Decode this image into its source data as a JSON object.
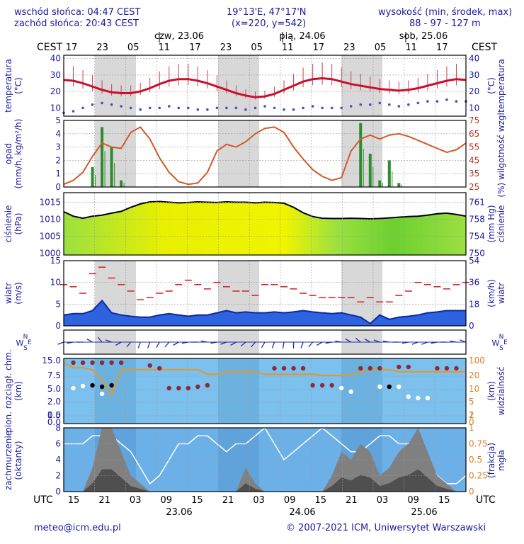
{
  "header": {
    "sunrise": "wschód słońca: 04:47 CEST",
    "sunset": "zachód słońca: 20:43 CEST",
    "coords": "19°13'E, 47°17'N",
    "grid": "(x=220, y=542)",
    "elev_label": "wysokość (min, środek, max)",
    "elev_values": "88 - 97 - 127 m"
  },
  "time_axis": {
    "top_zone": "CEST",
    "bottom_zone": "UTC",
    "days": [
      "czw, 23.06",
      "pią, 24.06",
      "sob, 25.06"
    ],
    "cest_ticks": [
      "17",
      "23",
      "05",
      "11",
      "17",
      "23",
      "05",
      "11",
      "17",
      "23",
      "05",
      "11",
      "17"
    ],
    "utc_ticks": [
      "15",
      "21",
      "03",
      "09",
      "15",
      "21",
      "03",
      "09",
      "15",
      "21",
      "03",
      "09",
      "15"
    ],
    "bottom_dates": [
      "23.06",
      "24.06",
      "25.06"
    ]
  },
  "footer": {
    "left": "meteo@icm.edu.pl",
    "right": "© 2007-2021 ICM, Uniwersytet Warszawski"
  },
  "chart_data": [
    {
      "type": "line",
      "panel": "temperature",
      "ylabel_left": "temperatura (°C)",
      "ylabel_right": "temperatura (°C)",
      "yticks_left": [
        "40",
        "30",
        "20",
        "10"
      ],
      "yticks_right": [
        "40",
        "30",
        "20",
        "10"
      ],
      "ylim": [
        5,
        42
      ],
      "series": [
        {
          "color": "#c8102e",
          "values": [
            27,
            26.5,
            25,
            23,
            21,
            19.5,
            19,
            19,
            20,
            22,
            24.5,
            26.5,
            27.5,
            27.5,
            26.5,
            25,
            23,
            21,
            19,
            17.5,
            16.5,
            17,
            18.5,
            21,
            23.5,
            26,
            27.5,
            28,
            27.5,
            26,
            24.5,
            23.5,
            22.5,
            21.5,
            21,
            20.5,
            21,
            22,
            23.5,
            25,
            26.5,
            27.5,
            27
          ]
        },
        {
          "color": "#4c4ccc",
          "values": [
            7,
            8,
            10,
            12,
            13,
            12,
            11,
            10,
            9,
            10,
            10,
            11,
            10,
            10,
            9,
            9,
            10,
            10,
            10,
            9,
            10,
            11,
            10,
            9,
            9,
            10,
            11,
            10,
            10,
            10,
            11,
            12,
            12,
            13,
            12,
            11,
            12,
            13,
            14,
            14,
            15,
            14,
            14
          ]
        }
      ]
    },
    {
      "type": "bar",
      "panel": "precipitation_humidity",
      "ylabel_left": "opad (mm/h, kg/m²/h)",
      "ylabel_right": "(%) wilgotność wzgl.",
      "yticks_left": [
        "5",
        "4",
        "3",
        "2",
        "1",
        "0"
      ],
      "yticks_right": [
        "75",
        "65",
        "55",
        "45",
        "35",
        "25"
      ],
      "ylim": [
        0,
        5
      ],
      "ylim_right": [
        25,
        75
      ],
      "series": [
        {
          "color": "#d15a2a",
          "values": [
            27,
            30,
            36,
            48,
            58,
            55,
            54,
            66,
            70,
            61,
            47,
            36,
            29,
            27,
            28,
            36,
            52,
            57,
            55,
            59,
            65,
            69,
            70,
            66,
            55,
            46,
            38,
            33,
            30,
            32,
            52,
            61,
            64,
            61,
            64,
            65,
            63,
            60,
            57,
            54,
            51,
            53,
            58
          ]
        },
        {
          "color": "#2e8b2e",
          "values": [
            0,
            0,
            0,
            1.5,
            4.5,
            3.0,
            0.5,
            0,
            0,
            0,
            0,
            0,
            0,
            0,
            0,
            0,
            0,
            0,
            0,
            0,
            0,
            0,
            0,
            0,
            0,
            0,
            0,
            0,
            0,
            0,
            0,
            4.8,
            2.5,
            0.5,
            2.0,
            0.3,
            0,
            0,
            0,
            0,
            0,
            0,
            0
          ]
        }
      ]
    },
    {
      "type": "area",
      "panel": "pressure",
      "ylabel_left": "ciśnienie (hPa)",
      "ylabel_right": "(mm Hg) ciśnienie",
      "yticks_left": [
        "1015",
        "1010",
        "1005",
        "1000"
      ],
      "yticks_right": [
        "761",
        "758",
        "754",
        "750"
      ],
      "ylim": [
        999.5,
        1017.8
      ],
      "series": [
        {
          "color": "#000000",
          "values": [
            1012.2,
            1010.9,
            1010.3,
            1010.9,
            1011.2,
            1011.8,
            1012.3,
            1013.5,
            1014.5,
            1015.1,
            1015.2,
            1015.0,
            1014.8,
            1014.9,
            1015.1,
            1015.0,
            1014.9,
            1015.1,
            1015.0,
            1015.0,
            1014.8,
            1015.0,
            1014.9,
            1014.7,
            1013.5,
            1011.9,
            1010.8,
            1010.3,
            1010.2,
            1010.2,
            1010.3,
            1010.2,
            1010.1,
            1010.2,
            1010.4,
            1010.6,
            1010.8,
            1010.9,
            1011.2,
            1011.6,
            1011.8,
            1011.4,
            1010.9
          ]
        }
      ]
    },
    {
      "type": "line",
      "panel": "wind",
      "ylabel_left": "wiatr (m/s)",
      "ylabel_right": "(km/h) wiatr",
      "yticks_left": [
        "15",
        "10",
        "5",
        "0"
      ],
      "yticks_right": [
        "54",
        "36",
        "18",
        "0"
      ],
      "ylim": [
        0,
        15
      ],
      "series": [
        {
          "color": "#1f3fc8",
          "values": [
            2.5,
            2.8,
            2.8,
            3.5,
            5.8,
            3.0,
            2.5,
            2.2,
            2.0,
            2.0,
            2.5,
            2.8,
            2.5,
            2.2,
            2.5,
            2.5,
            3.0,
            3.5,
            3.0,
            3.2,
            3.0,
            3.0,
            3.2,
            3.0,
            3.2,
            3.5,
            3.2,
            3.0,
            2.8,
            3.0,
            2.5,
            2.0,
            0.5,
            2.5,
            1.5,
            2.0,
            2.2,
            2.5,
            3.0,
            3.2,
            3.5,
            3.5,
            3.5
          ]
        },
        {
          "color": "#d22020",
          "values": [
            9.5,
            9.0,
            7.5,
            12,
            13.5,
            11,
            9.5,
            8.0,
            6.0,
            6.5,
            7.5,
            8.0,
            9.5,
            10.5,
            9.5,
            8.5,
            10,
            9.0,
            8.0,
            8.0,
            7.0,
            9.5,
            9.5,
            9.0,
            8.5,
            7.5,
            7.0,
            6.5,
            6.5,
            6.5,
            6.5,
            5.5,
            6.5,
            5.5,
            5.5,
            7.0,
            8.0,
            10,
            9.5,
            9.0,
            8.5,
            9.5,
            10
          ]
        }
      ]
    },
    {
      "type": "scatter",
      "panel": "wind_direction",
      "ylabel_left": "W N E S",
      "ylabel_right": "W N E S",
      "series": [
        {
          "color": "#1f2fa8",
          "values": [
            250,
            260,
            270,
            300,
            320,
            290,
            240,
            220,
            200,
            200,
            210,
            220,
            240,
            260,
            270,
            280,
            260,
            250,
            240,
            230,
            220,
            210,
            200,
            190,
            180,
            200,
            220,
            240,
            260,
            280,
            300,
            310,
            300,
            290,
            280,
            270,
            260,
            250,
            250,
            260,
            270,
            280,
            290
          ]
        }
      ]
    },
    {
      "type": "line",
      "panel": "clouds_visibility",
      "ylabel_left": "pion. rozciągł. chm. (km)",
      "ylabel_right": "(km) widzialność",
      "yticks_left": [
        "15.0",
        "7.5",
        "5.0",
        "2.0",
        "1.0",
        "0.5",
        "0.0"
      ],
      "yticks_right": [
        "100",
        "20",
        "10",
        "5",
        "2",
        "1",
        "0"
      ],
      "series": [
        {
          "color": "#e3972a",
          "values": [
            14,
            11,
            11,
            10,
            6,
            2.5,
            10,
            10,
            10,
            10,
            10,
            10,
            10,
            10,
            10,
            8,
            8,
            9,
            9,
            9,
            9,
            8,
            8,
            8,
            8,
            8,
            8,
            7.5,
            7.5,
            7.5,
            8,
            9,
            10,
            10,
            10,
            9,
            9,
            9,
            9,
            9,
            9,
            9,
            9
          ]
        }
      ]
    },
    {
      "type": "area",
      "panel": "cloud_cover_fog",
      "ylabel_left": "zachmurzenie (oktanty)",
      "ylabel_right": "(frakcja) mgła",
      "yticks_left": [
        "8",
        "6",
        "4",
        "2",
        "0"
      ],
      "yticks_right": [
        "1",
        "0.75",
        "0.5",
        "0.25",
        "0"
      ],
      "ylim": [
        0,
        8
      ],
      "series": [
        {
          "color": "#808080",
          "values": [
            0,
            0,
            0,
            3,
            8,
            8,
            5,
            2,
            1,
            0,
            0,
            0,
            0,
            0,
            0,
            0,
            0,
            0,
            0,
            3,
            1,
            0,
            0,
            0,
            0,
            0,
            0,
            0,
            2,
            5,
            4,
            6,
            5,
            2,
            3,
            5,
            6,
            8,
            5,
            2,
            1,
            0,
            0
          ]
        },
        {
          "color": "#ffffff",
          "values": [
            6,
            6,
            6,
            7,
            7,
            7,
            6,
            5,
            3,
            1,
            2,
            4,
            6,
            6,
            7,
            7,
            6,
            5,
            6,
            6,
            7,
            8,
            6,
            4,
            5,
            6,
            7,
            8,
            7,
            6,
            5,
            5,
            6,
            7,
            7,
            6,
            6,
            6,
            4,
            2,
            1,
            1,
            2
          ]
        }
      ]
    }
  ]
}
